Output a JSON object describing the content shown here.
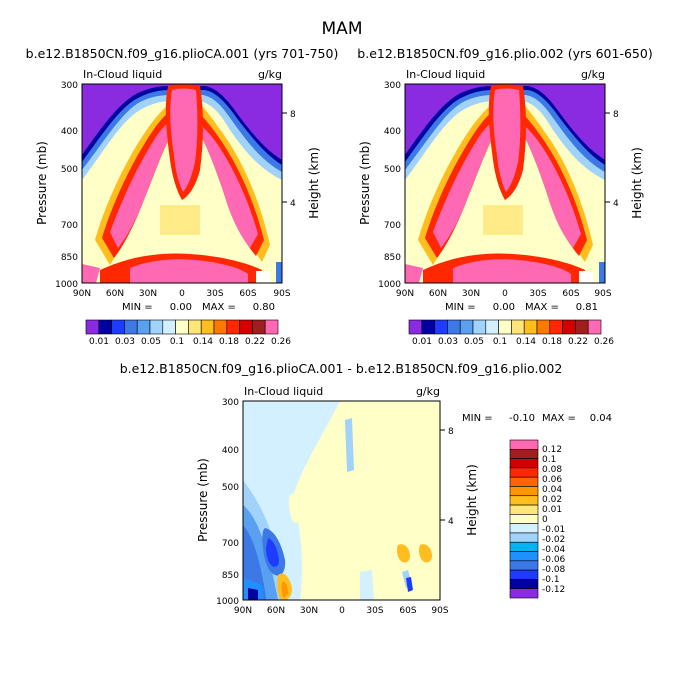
{
  "figure_title": "MAM",
  "colors": {
    "main_palette": [
      "#8a2be2",
      "#0000a0",
      "#1e3cff",
      "#3c78e6",
      "#5aa0f0",
      "#a0d2fa",
      "#d2f0ff",
      "#ffffc8",
      "#ffe678",
      "#ffbe1e",
      "#ff7800",
      "#ff2800",
      "#d20000",
      "#a01e1e",
      "#ff69b4"
    ],
    "diff_palette": [
      "#8a2be2",
      "#0000a0",
      "#1e3cff",
      "#3c78e6",
      "#1e90ff",
      "#00b4f0",
      "#a0d2fa",
      "#d2f0ff",
      "#ffffc8",
      "#ffe678",
      "#ffbe1e",
      "#ff9600",
      "#ff6400",
      "#ff2800",
      "#d20000",
      "#a01e1e",
      "#ff69b4"
    ]
  },
  "chart_data": [
    {
      "type": "heatmap",
      "title": "b.e12.B1850CN.f09_g16.plioCA.001 (yrs 701-750)",
      "left_label": "In-Cloud liquid",
      "right_label": "g/kg",
      "ylabel": "Pressure (mb)",
      "y2label": "Height (km)",
      "x_ticks": [
        "90N",
        "60N",
        "30N",
        "0",
        "30S",
        "60S",
        "90S"
      ],
      "y_ticks": [
        "300",
        "400",
        "500",
        "700",
        "850",
        "1000"
      ],
      "y_tick_values": [
        300,
        400,
        500,
        700,
        850,
        1000
      ],
      "y2_ticks": [
        "8",
        "4"
      ],
      "y2_tick_values": [
        8,
        4
      ],
      "ylim": [
        300,
        1000
      ],
      "min_label": "MIN =",
      "min": "0.00",
      "max_label": "MAX =",
      "max": "0.80",
      "colorbar_labels": [
        "0.01",
        "0.03",
        "0.05",
        "0.1",
        "0.14",
        "0.18",
        "0.22",
        "0.26"
      ],
      "levels": [
        0.01,
        0.02,
        0.03,
        0.04,
        0.05,
        0.08,
        0.1,
        0.12,
        0.14,
        0.16,
        0.18,
        0.2,
        0.22,
        0.24,
        0.26
      ]
    },
    {
      "type": "heatmap",
      "title": "b.e12.B1850CN.f09_g16.plio.002 (yrs 601-650)",
      "left_label": "In-Cloud liquid",
      "right_label": "g/kg",
      "ylabel": "Pressure (mb)",
      "y2label": "Height (km)",
      "x_ticks": [
        "90N",
        "60N",
        "30N",
        "0",
        "30S",
        "60S",
        "90S"
      ],
      "y_ticks": [
        "300",
        "400",
        "500",
        "700",
        "850",
        "1000"
      ],
      "y_tick_values": [
        300,
        400,
        500,
        700,
        850,
        1000
      ],
      "y2_ticks": [
        "8",
        "4"
      ],
      "y2_tick_values": [
        8,
        4
      ],
      "ylim": [
        300,
        1000
      ],
      "min_label": "MIN =",
      "min": "0.00",
      "max_label": "MAX =",
      "max": "0.81",
      "colorbar_labels": [
        "0.01",
        "0.03",
        "0.05",
        "0.1",
        "0.14",
        "0.18",
        "0.22",
        "0.26"
      ],
      "levels": [
        0.01,
        0.02,
        0.03,
        0.04,
        0.05,
        0.08,
        0.1,
        0.12,
        0.14,
        0.16,
        0.18,
        0.2,
        0.22,
        0.24,
        0.26
      ]
    },
    {
      "type": "heatmap",
      "title": "b.e12.B1850CN.f09_g16.plioCA.001 - b.e12.B1850CN.f09_g16.plio.002",
      "left_label": "In-Cloud liquid",
      "right_label": "g/kg",
      "ylabel": "Pressure (mb)",
      "y2label": "Height (km)",
      "x_ticks": [
        "90N",
        "60N",
        "30N",
        "0",
        "30S",
        "60S",
        "90S"
      ],
      "y_ticks": [
        "300",
        "400",
        "500",
        "700",
        "850",
        "1000"
      ],
      "y_tick_values": [
        300,
        400,
        500,
        700,
        850,
        1000
      ],
      "y2_ticks": [
        "8",
        "4"
      ],
      "y2_tick_values": [
        8,
        4
      ],
      "ylim": [
        300,
        1000
      ],
      "min_label": "MIN =",
      "min": "-0.10",
      "max_label": "MAX =",
      "max": "0.04",
      "colorbar_labels": [
        "0.12",
        "0.1",
        "0.08",
        "0.06",
        "0.04",
        "0.02",
        "0.01",
        "0",
        "-0.01",
        "-0.02",
        "-0.04",
        "-0.06",
        "-0.08",
        "-0.1",
        "-0.12"
      ],
      "levels": [
        -0.12,
        -0.1,
        -0.08,
        -0.06,
        -0.04,
        -0.02,
        -0.01,
        0,
        0.01,
        0.02,
        0.04,
        0.06,
        0.08,
        0.1,
        0.12
      ]
    }
  ]
}
